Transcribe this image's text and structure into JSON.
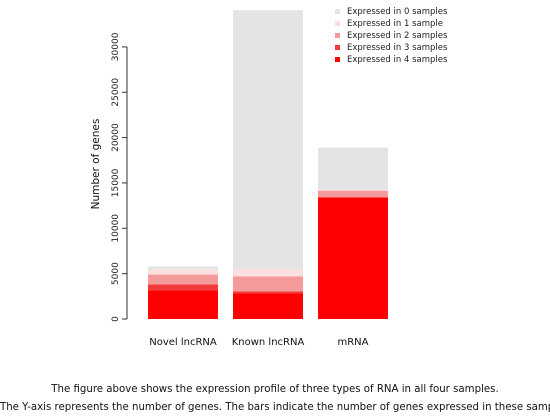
{
  "chart_data": {
    "type": "bar",
    "stacked": true,
    "categories": [
      "Novel lncRNA",
      "Known lncRNA",
      "mRNA"
    ],
    "ylabel": "Number of genes",
    "yticks": [
      0,
      5000,
      10000,
      15000,
      20000,
      25000,
      30000
    ],
    "ylim": [
      0,
      34000
    ],
    "legend_position": "top-right",
    "series": [
      {
        "name": "Expressed in 4 samples",
        "color": "#ff0000",
        "values": [
          3150,
          2850,
          13400
        ]
      },
      {
        "name": "Expressed in 3 samples",
        "color": "#f23a3a",
        "values": [
          650,
          200,
          0
        ]
      },
      {
        "name": "Expressed in 2 samples",
        "color": "#f59a9a",
        "values": [
          1100,
          1650,
          750
        ]
      },
      {
        "name": "Expressed in 1 sample",
        "color": "#fbdede",
        "values": [
          550,
          850,
          150
        ]
      },
      {
        "name": "Expressed in 0 samples",
        "color": "#e4e4e4",
        "values": [
          350,
          28500,
          4600
        ]
      }
    ]
  },
  "caption": {
    "line1": "The figure above shows the expression profile of three types of RNA in all four samples.",
    "line2": "The Y-axis represents the number of genes. The bars indicate the number of genes expressed in these samples."
  }
}
